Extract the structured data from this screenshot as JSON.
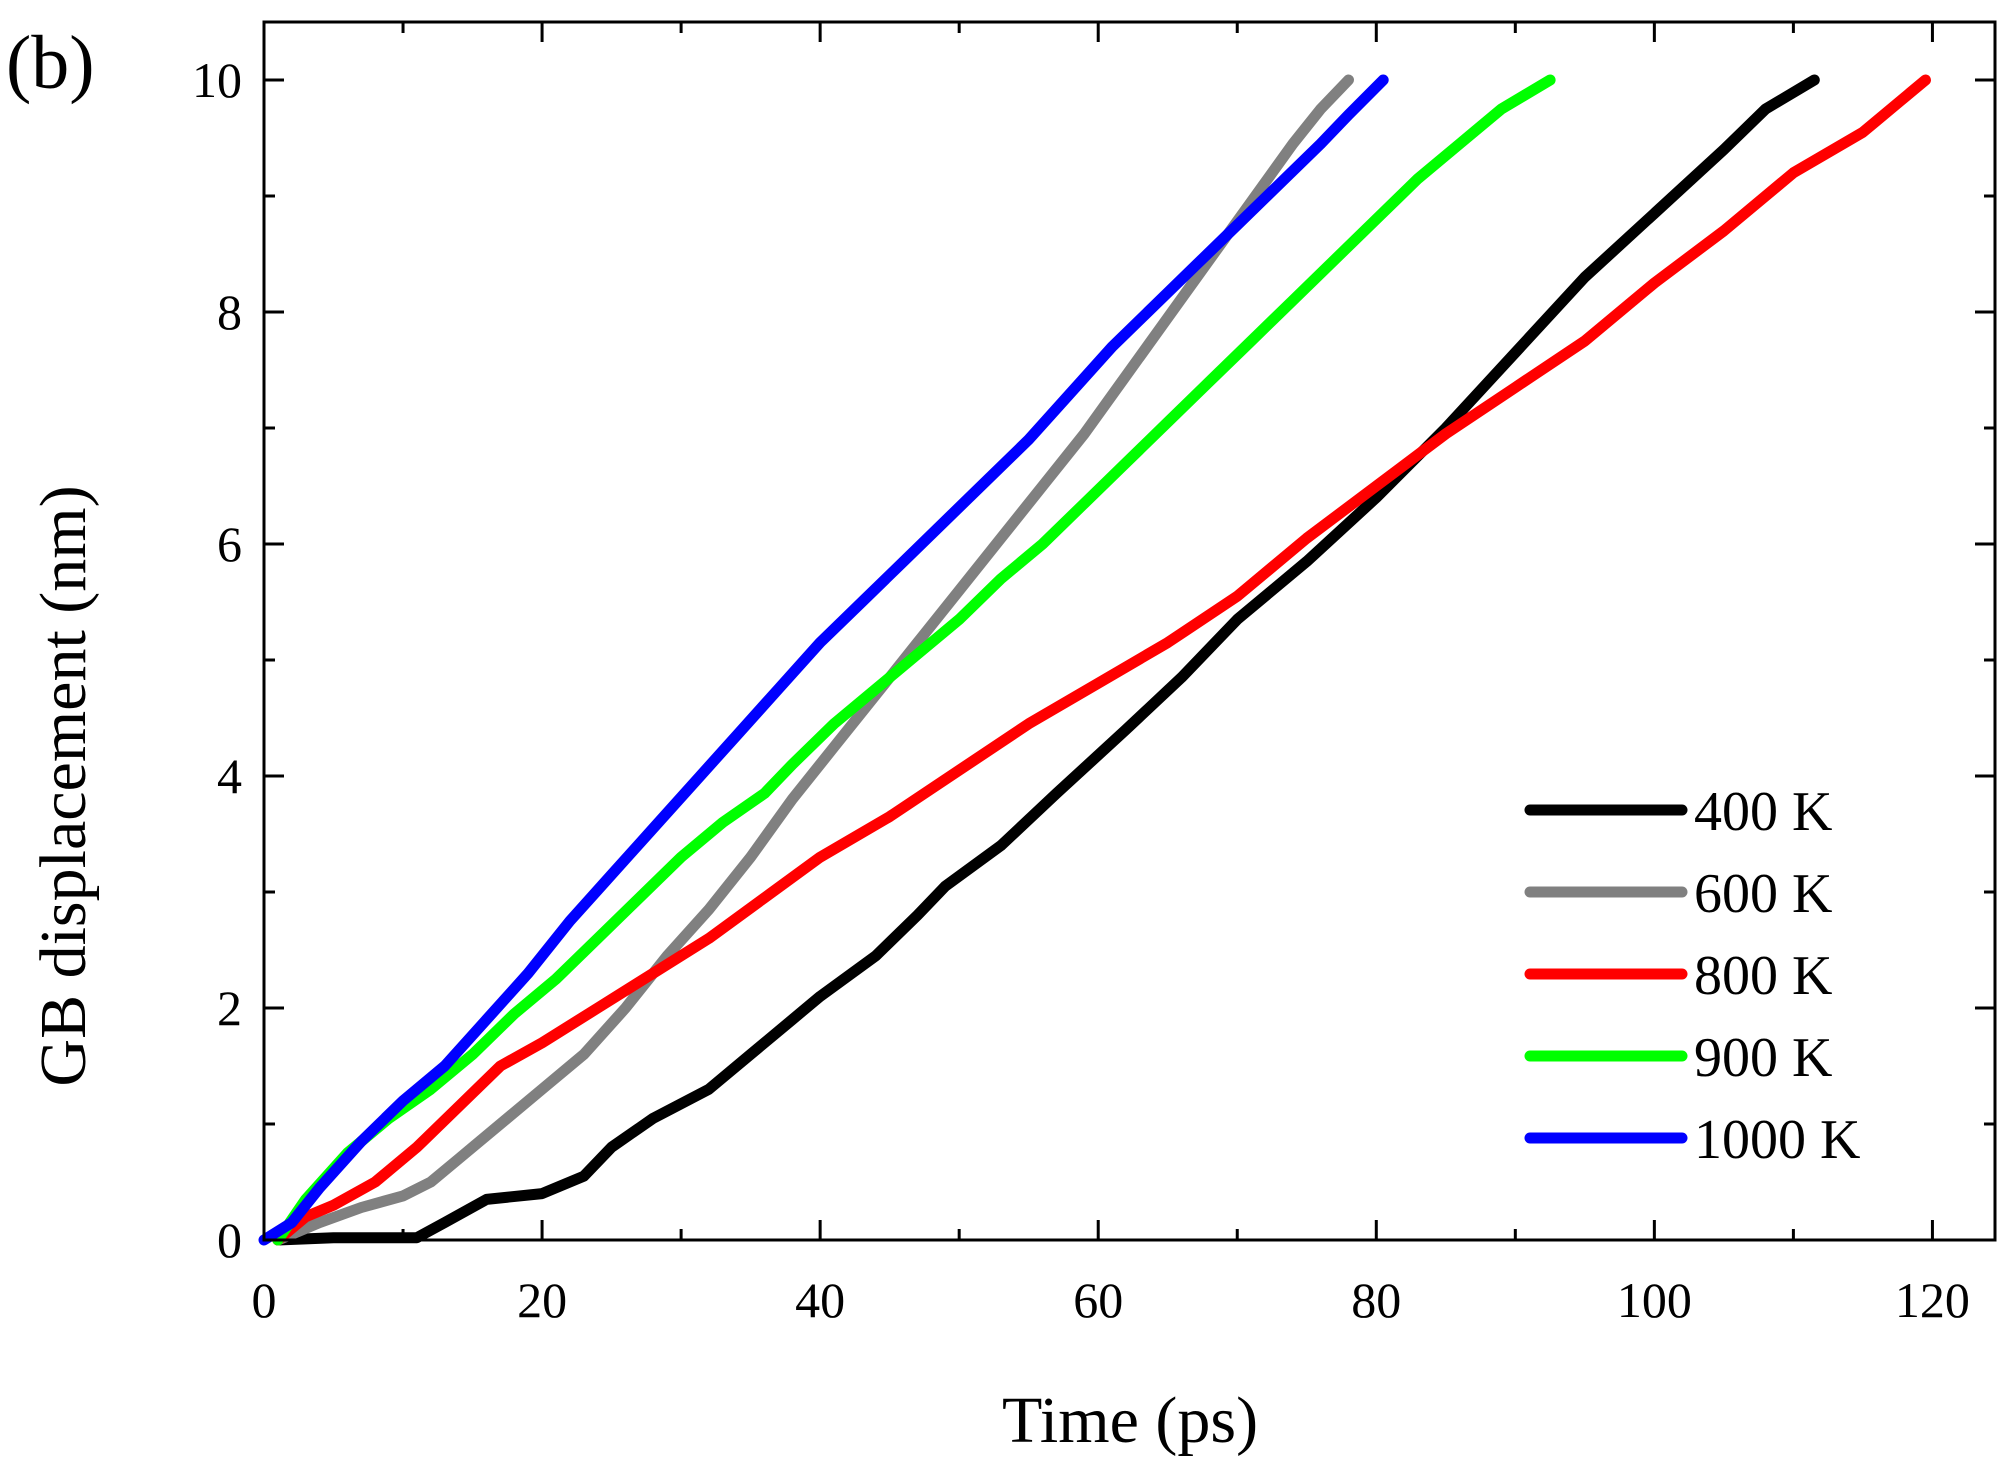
{
  "chart_data": {
    "type": "line",
    "panel_label": "(b)",
    "title": "",
    "xlabel": "Time (ps)",
    "ylabel": "GB displacement (nm)",
    "xlim": [
      0,
      124.5
    ],
    "ylim": [
      0,
      10.5
    ],
    "x_ticks": [
      0,
      20,
      40,
      60,
      80,
      100,
      120
    ],
    "y_ticks": [
      0,
      2,
      4,
      6,
      8,
      10
    ],
    "x_tick_labels": [
      "0",
      "20",
      "40",
      "60",
      "80",
      "100",
      "120"
    ],
    "y_tick_labels": [
      "0",
      "2",
      "4",
      "6",
      "8",
      "10"
    ],
    "grid": false,
    "legend_position": "bottom-right",
    "series": [
      {
        "name": "400 K",
        "color": "#000000",
        "x": [
          1,
          5,
          11,
          13,
          16,
          20,
          23,
          25,
          28,
          32,
          35,
          38,
          40,
          44,
          47,
          49,
          53,
          57,
          62,
          66,
          70,
          75,
          80,
          85,
          90,
          95,
          100,
          105,
          108,
          111.5
        ],
        "y": [
          0,
          0.02,
          0.02,
          0.15,
          0.35,
          0.4,
          0.55,
          0.8,
          1.05,
          1.3,
          1.6,
          1.9,
          2.1,
          2.45,
          2.8,
          3.05,
          3.4,
          3.85,
          4.4,
          4.85,
          5.35,
          5.85,
          6.4,
          7.0,
          7.65,
          8.3,
          8.85,
          9.4,
          9.75,
          10.0
        ]
      },
      {
        "name": "600 K",
        "color": "#808080",
        "x": [
          1,
          4,
          7,
          10,
          12,
          14,
          17,
          20,
          23,
          26,
          29,
          32,
          35,
          38,
          41,
          44,
          47,
          50,
          53,
          56,
          59,
          62,
          65,
          68,
          71,
          74,
          76,
          78
        ],
        "y": [
          0,
          0.15,
          0.28,
          0.38,
          0.5,
          0.7,
          1.0,
          1.3,
          1.6,
          2.0,
          2.45,
          2.85,
          3.3,
          3.8,
          4.25,
          4.7,
          5.15,
          5.6,
          6.05,
          6.5,
          6.95,
          7.45,
          7.95,
          8.45,
          8.95,
          9.45,
          9.75,
          10.0
        ]
      },
      {
        "name": "800 K",
        "color": "#ff0000",
        "x": [
          1,
          3,
          5,
          8,
          11,
          14,
          17,
          20,
          24,
          28,
          32,
          36,
          40,
          45,
          50,
          55,
          60,
          65,
          70,
          75,
          80,
          85,
          90,
          95,
          100,
          105,
          110,
          115,
          119.5
        ],
        "y": [
          0,
          0.2,
          0.3,
          0.5,
          0.8,
          1.15,
          1.5,
          1.7,
          2.0,
          2.3,
          2.6,
          2.95,
          3.3,
          3.65,
          4.05,
          4.45,
          4.8,
          5.15,
          5.55,
          6.05,
          6.5,
          6.95,
          7.35,
          7.75,
          8.25,
          8.7,
          9.2,
          9.55,
          10.0
        ]
      },
      {
        "name": "900 K",
        "color": "#00ff00",
        "x": [
          1,
          3,
          6,
          9,
          12,
          15,
          18,
          21,
          24,
          27,
          30,
          33,
          36,
          38,
          41,
          44,
          47,
          50,
          53,
          56,
          59,
          62,
          65,
          68,
          71,
          74,
          77,
          80,
          83,
          86,
          89,
          92.5
        ],
        "y": [
          0,
          0.35,
          0.75,
          1.05,
          1.3,
          1.6,
          1.95,
          2.25,
          2.6,
          2.95,
          3.3,
          3.6,
          3.85,
          4.1,
          4.45,
          4.75,
          5.05,
          5.35,
          5.7,
          6.0,
          6.35,
          6.7,
          7.05,
          7.4,
          7.75,
          8.1,
          8.45,
          8.8,
          9.15,
          9.45,
          9.75,
          10.0
        ]
      },
      {
        "name": "1000 K",
        "color": "#0000ff",
        "x": [
          0,
          2,
          4,
          7,
          10,
          13,
          16,
          19,
          22,
          25,
          28,
          31,
          34,
          37,
          40,
          43,
          46,
          49,
          52,
          55,
          58,
          61,
          64,
          67,
          70,
          73,
          76,
          78,
          80.5
        ],
        "y": [
          0,
          0.15,
          0.45,
          0.85,
          1.2,
          1.5,
          1.9,
          2.3,
          2.75,
          3.15,
          3.55,
          3.95,
          4.35,
          4.75,
          5.15,
          5.5,
          5.85,
          6.2,
          6.55,
          6.9,
          7.3,
          7.7,
          8.05,
          8.4,
          8.75,
          9.1,
          9.45,
          9.7,
          10.0
        ]
      }
    ]
  }
}
